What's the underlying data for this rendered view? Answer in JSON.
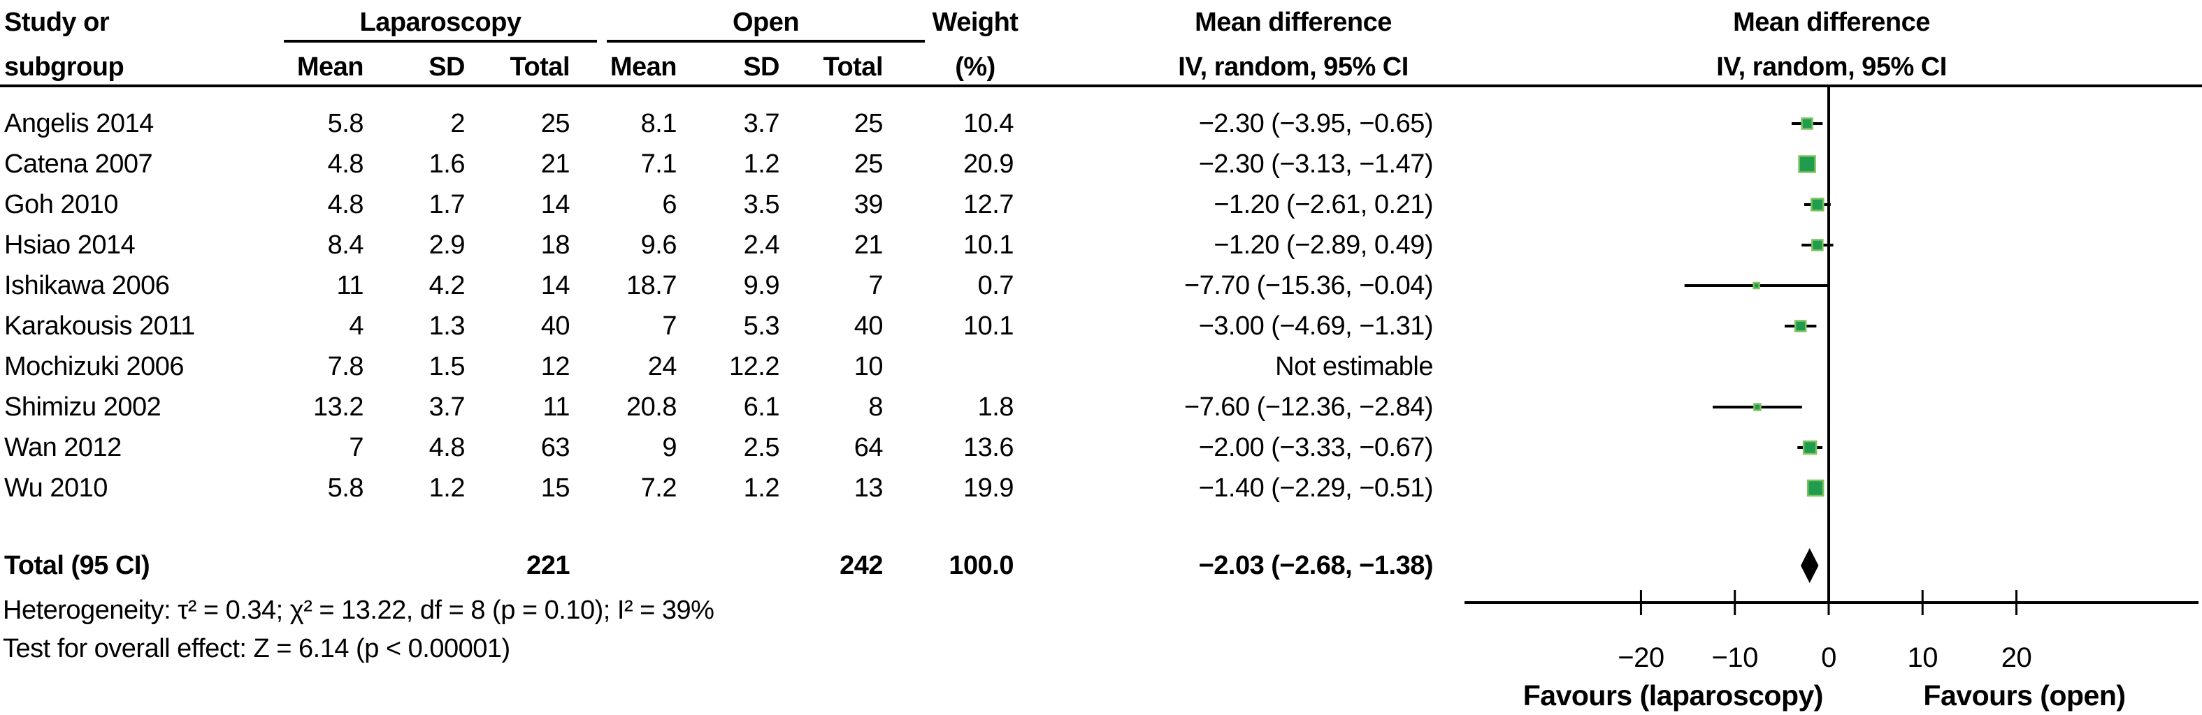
{
  "colors": {
    "marker_fill": "#1f9c4d",
    "marker_border": "#7ec35f",
    "line": "#000000",
    "text": "#000000"
  },
  "header": {
    "study_line1": "Study or",
    "study_line2": "subgroup",
    "group_laparoscopy": "Laparoscopy",
    "group_open": "Open",
    "sub_cols": [
      "Mean",
      "SD",
      "Total"
    ],
    "weight_line1": "Weight",
    "weight_line2": "(%)",
    "md_text_line1": "Mean difference",
    "md_text_line2": "IV, random, 95% CI",
    "md_plot_line1": "Mean difference",
    "md_plot_line2": "IV, random, 95% CI"
  },
  "rows": [
    {
      "study": "Angelis 2014",
      "lap_mean": "5.8",
      "lap_sd": "2",
      "lap_total": "25",
      "open_mean": "8.1",
      "open_sd": "3.7",
      "open_total": "25",
      "weight": "10.4",
      "ci": "−2.30 (−3.95, −0.65)"
    },
    {
      "study": "Catena 2007",
      "lap_mean": "4.8",
      "lap_sd": "1.6",
      "lap_total": "21",
      "open_mean": "7.1",
      "open_sd": "1.2",
      "open_total": "25",
      "weight": "20.9",
      "ci": "−2.30 (−3.13, −1.47)"
    },
    {
      "study": "Goh 2010",
      "lap_mean": "4.8",
      "lap_sd": "1.7",
      "lap_total": "14",
      "open_mean": "6",
      "open_sd": "3.5",
      "open_total": "39",
      "weight": "12.7",
      "ci": "−1.20 (−2.61, 0.21)"
    },
    {
      "study": "Hsiao 2014",
      "lap_mean": "8.4",
      "lap_sd": "2.9",
      "lap_total": "18",
      "open_mean": "9.6",
      "open_sd": "2.4",
      "open_total": "21",
      "weight": "10.1",
      "ci": "−1.20 (−2.89, 0.49)"
    },
    {
      "study": "Ishikawa 2006",
      "lap_mean": "11",
      "lap_sd": "4.2",
      "lap_total": "14",
      "open_mean": "18.7",
      "open_sd": "9.9",
      "open_total": "7",
      "weight": "0.7",
      "ci": "−7.70 (−15.36, −0.04)"
    },
    {
      "study": "Karakousis 2011",
      "lap_mean": "4",
      "lap_sd": "1.3",
      "lap_total": "40",
      "open_mean": "7",
      "open_sd": "5.3",
      "open_total": "40",
      "weight": "10.1",
      "ci": "−3.00 (−4.69, −1.31)"
    },
    {
      "study": "Mochizuki 2006",
      "lap_mean": "7.8",
      "lap_sd": "1.5",
      "lap_total": "12",
      "open_mean": "24",
      "open_sd": "12.2",
      "open_total": "10",
      "weight": "",
      "ci": "Not estimable"
    },
    {
      "study": "Shimizu 2002",
      "lap_mean": "13.2",
      "lap_sd": "3.7",
      "lap_total": "11",
      "open_mean": "20.8",
      "open_sd": "6.1",
      "open_total": "8",
      "weight": "1.8",
      "ci": "−7.60 (−12.36, −2.84)"
    },
    {
      "study": "Wan 2012",
      "lap_mean": "7",
      "lap_sd": "4.8",
      "lap_total": "63",
      "open_mean": "9",
      "open_sd": "2.5",
      "open_total": "64",
      "weight": "13.6",
      "ci": "−2.00 (−3.33, −0.67)"
    },
    {
      "study": "Wu 2010",
      "lap_mean": "5.8",
      "lap_sd": "1.2",
      "lap_total": "15",
      "open_mean": "7.2",
      "open_sd": "1.2",
      "open_total": "13",
      "weight": "19.9",
      "ci": "−1.40 (−2.29, −0.51)"
    }
  ],
  "total_row": {
    "label": "Total (95 CI)",
    "lap_total": "221",
    "open_total": "242",
    "weight": "100.0",
    "ci": "−2.03 (−2.68, −1.38)"
  },
  "footer": {
    "heterogeneity": "Heterogeneity: τ² = 0.34; χ² = 13.22, df = 8 (p = 0.10); I² = 39%",
    "overall_effect": "Test for overall effect: Z = 6.14 (p < 0.00001)"
  },
  "chart_data": {
    "type": "forest",
    "effect_measure": "Mean difference, IV, random, 95% CI",
    "ticks": [
      -20,
      -10,
      0,
      10,
      20
    ],
    "xlim": [
      -38.8,
      39.4
    ],
    "favours_left": "Favours (laparoscopy)",
    "favours_right": "Favours (open)",
    "studies": [
      {
        "name": "Angelis 2014",
        "mean": -2.3,
        "ci_low": -3.95,
        "ci_high": -0.65,
        "weight": 10.4,
        "size": 15
      },
      {
        "name": "Catena 2007",
        "mean": -2.3,
        "ci_low": -3.13,
        "ci_high": -1.47,
        "weight": 20.9,
        "size": 23
      },
      {
        "name": "Goh 2010",
        "mean": -1.2,
        "ci_low": -2.61,
        "ci_high": 0.21,
        "weight": 12.7,
        "size": 17
      },
      {
        "name": "Hsiao 2014",
        "mean": -1.2,
        "ci_low": -2.89,
        "ci_high": 0.49,
        "weight": 10.1,
        "size": 15
      },
      {
        "name": "Ishikawa 2006",
        "mean": -7.7,
        "ci_low": -15.36,
        "ci_high": -0.04,
        "weight": 0.7,
        "size": 8
      },
      {
        "name": "Karakousis 2011",
        "mean": -3.0,
        "ci_low": -4.69,
        "ci_high": -1.31,
        "weight": 10.1,
        "size": 15
      },
      {
        "name": "Mochizuki 2006",
        "mean": null,
        "ci_low": null,
        "ci_high": null,
        "weight": null,
        "size": 0
      },
      {
        "name": "Shimizu 2002",
        "mean": -7.6,
        "ci_low": -12.36,
        "ci_high": -2.84,
        "weight": 1.8,
        "size": 9
      },
      {
        "name": "Wan 2012",
        "mean": -2.0,
        "ci_low": -3.33,
        "ci_high": -0.67,
        "weight": 13.6,
        "size": 18
      },
      {
        "name": "Wu 2010",
        "mean": -1.4,
        "ci_low": -2.29,
        "ci_high": -0.51,
        "weight": 19.9,
        "size": 22
      }
    ],
    "total": {
      "mean": -2.03,
      "ci_low": -2.68,
      "ci_high": -1.38
    }
  }
}
